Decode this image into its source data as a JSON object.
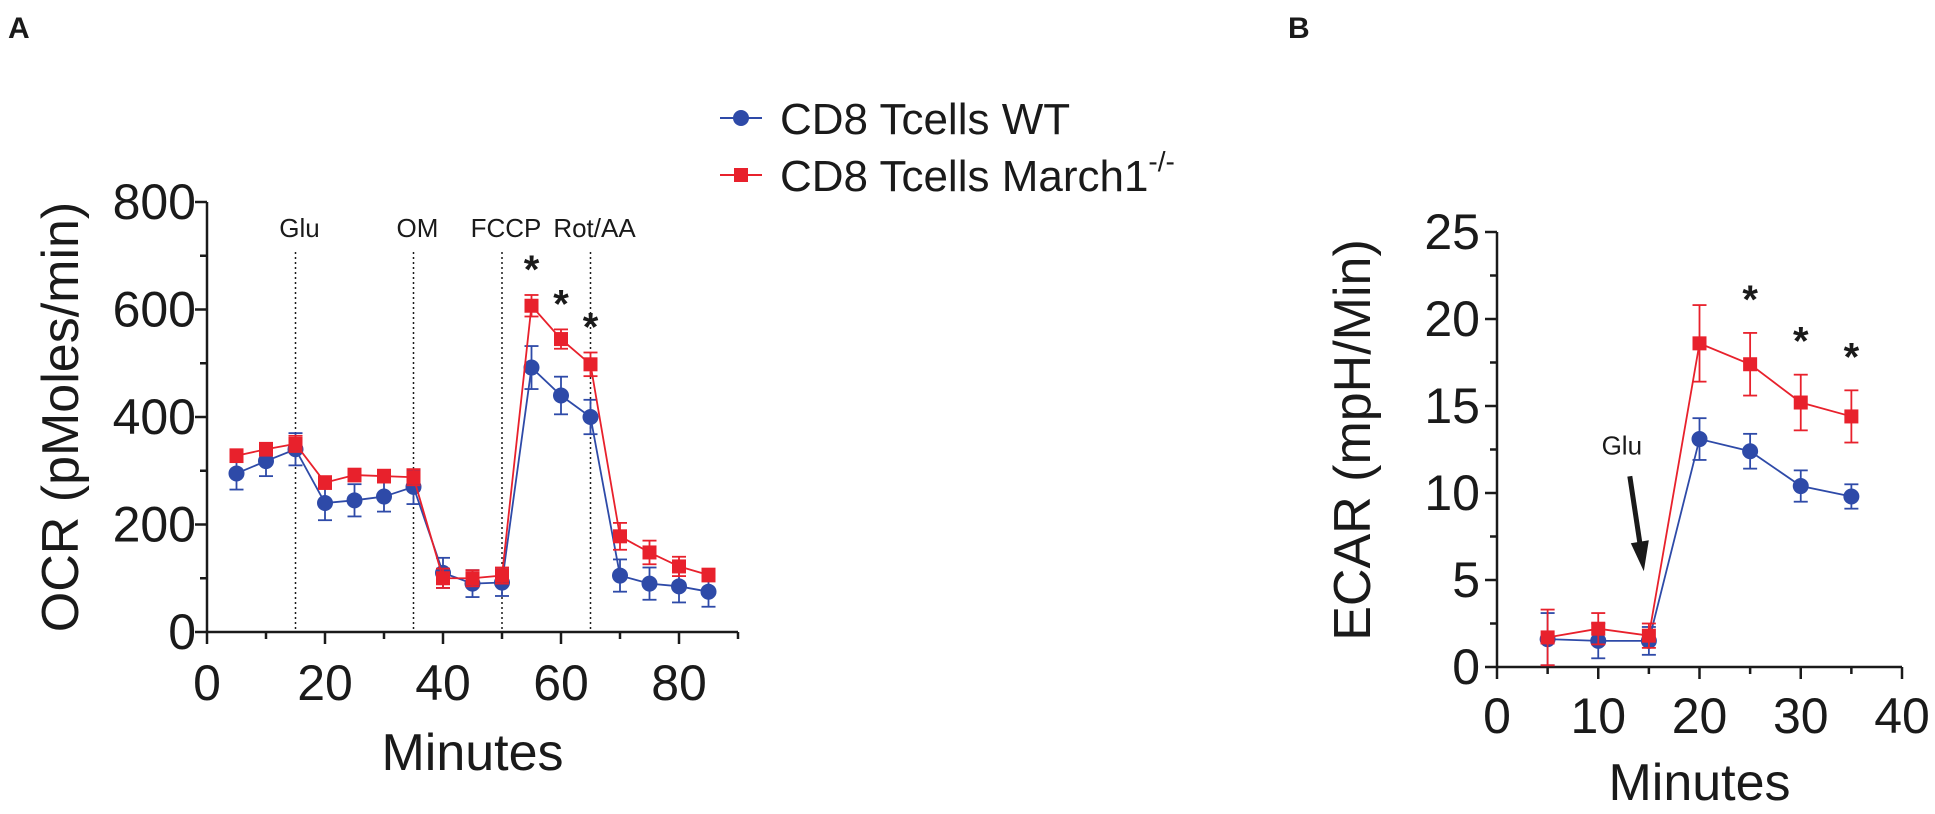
{
  "legend": {
    "entries": [
      {
        "label": "CD8 Tcells WT",
        "sup": "",
        "color": "#2e4aa8",
        "marker": "circle"
      },
      {
        "label": "CD8 Tcells March1",
        "sup": "-/-",
        "color": "#e8212c",
        "marker": "square"
      }
    ]
  },
  "chart_data": [
    {
      "panel": "A",
      "type": "line",
      "xlabel": "Minutes",
      "ylabel": "OCR (pMoles/min)",
      "xlim": [
        0,
        90
      ],
      "ylim": [
        0,
        800
      ],
      "xticks": [
        0,
        20,
        40,
        60,
        80
      ],
      "yticks": [
        0,
        200,
        400,
        600,
        800
      ],
      "injections": [
        {
          "x": 15,
          "label": "Glu"
        },
        {
          "x": 35,
          "label": "OM"
        },
        {
          "x": 50,
          "label": "FCCP"
        },
        {
          "x": 65,
          "label": "Rot/AA"
        }
      ],
      "x": [
        5,
        10,
        15,
        20,
        25,
        30,
        35,
        40,
        45,
        50,
        55,
        60,
        65,
        70,
        75,
        80,
        85
      ],
      "series": [
        {
          "name": "CD8 Tcells WT",
          "color": "#2e4aa8",
          "marker": "circle",
          "values": [
            295,
            318,
            340,
            240,
            245,
            252,
            270,
            110,
            90,
            92,
            492,
            440,
            400,
            105,
            90,
            85,
            75
          ],
          "errors": [
            30,
            28,
            30,
            32,
            30,
            28,
            32,
            28,
            25,
            25,
            40,
            35,
            32,
            30,
            30,
            30,
            28
          ]
        },
        {
          "name": "CD8 Tcells March1-/-",
          "color": "#e8212c",
          "marker": "square",
          "values": [
            328,
            340,
            350,
            278,
            292,
            290,
            288,
            100,
            100,
            105,
            607,
            545,
            498,
            178,
            148,
            122,
            106
          ],
          "errors": [
            12,
            12,
            15,
            12,
            12,
            12,
            15,
            18,
            15,
            15,
            20,
            18,
            22,
            25,
            22,
            18,
            12
          ]
        }
      ],
      "significance": [
        {
          "x": 55,
          "label": "*"
        },
        {
          "x": 60,
          "label": "*"
        },
        {
          "x": 65,
          "label": "*"
        }
      ]
    },
    {
      "panel": "B",
      "type": "line",
      "xlabel": "Minutes",
      "ylabel": "ECAR (mpH/Min)",
      "xlim": [
        0,
        40
      ],
      "ylim": [
        0,
        25
      ],
      "xticks": [
        0,
        10,
        20,
        30,
        40
      ],
      "yticks": [
        0,
        5,
        10,
        15,
        20,
        25
      ],
      "annotation": {
        "label": "Glu",
        "x": 14.5,
        "y": 5.5
      },
      "x": [
        5,
        10,
        15,
        20,
        25,
        30,
        35
      ],
      "series": [
        {
          "name": "CD8 Tcells WT",
          "color": "#2e4aa8",
          "marker": "circle",
          "values": [
            1.6,
            1.5,
            1.5,
            13.1,
            12.4,
            10.4,
            9.8
          ],
          "errors": [
            1.5,
            1.0,
            0.8,
            1.2,
            1.0,
            0.9,
            0.7
          ]
        },
        {
          "name": "CD8 Tcells March1-/-",
          "color": "#e8212c",
          "marker": "square",
          "values": [
            1.7,
            2.2,
            1.8,
            18.6,
            17.4,
            15.2,
            14.4
          ],
          "errors": [
            1.6,
            0.9,
            0.7,
            2.2,
            1.8,
            1.6,
            1.5
          ]
        }
      ],
      "significance": [
        {
          "x": 25,
          "label": "*"
        },
        {
          "x": 30,
          "label": "*"
        },
        {
          "x": 35,
          "label": "*"
        }
      ]
    }
  ]
}
